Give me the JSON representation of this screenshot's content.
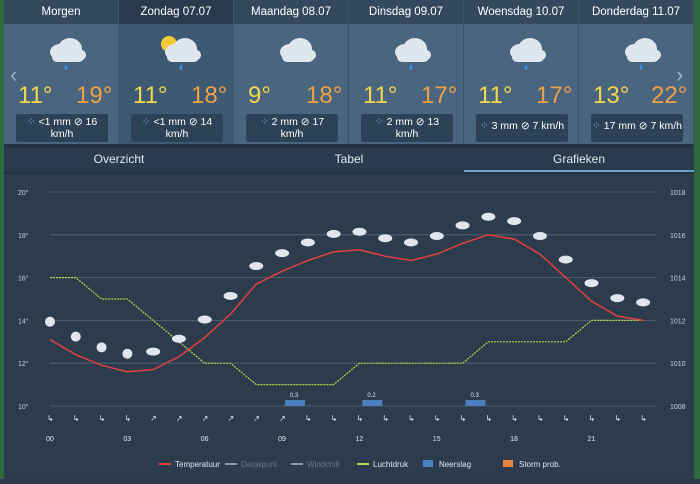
{
  "days": [
    {
      "name": "Morgen",
      "tmin": "11°",
      "tmax": "19°",
      "rain": "<1 mm",
      "wind": "16",
      "wind_unit": "km/h",
      "icon": "cloud-rain-icon",
      "active": false
    },
    {
      "name": "Zondag 07.07",
      "tmin": "11°",
      "tmax": "18°",
      "rain": "<1 mm",
      "wind": "14",
      "wind_unit": "km/h",
      "icon": "sun-cloud-rain-icon",
      "active": true
    },
    {
      "name": "Maandag 08.07",
      "tmin": "9°",
      "tmax": "18°",
      "rain": "2 mm",
      "wind": "17",
      "wind_unit": "km/h",
      "icon": "cloud-icon",
      "active": false
    },
    {
      "name": "Dinsdag 09.07",
      "tmin": "11°",
      "tmax": "17°",
      "rain": "2 mm",
      "wind": "13",
      "wind_unit": "km/h",
      "icon": "cloud-rain-icon",
      "active": false
    },
    {
      "name": "Woensdag 10.07",
      "tmin": "11°",
      "tmax": "17°",
      "rain": "3 mm",
      "wind": "7 km/h",
      "wind_unit": "",
      "icon": "cloud-rain-icon",
      "active": false
    },
    {
      "name": "Donderdag 11.07",
      "tmin": "13°",
      "tmax": "22°",
      "rain": "17 mm",
      "wind": "7 km/h",
      "wind_unit": "",
      "icon": "cloud-rain-icon",
      "active": false
    }
  ],
  "nav": {
    "prev": "‹",
    "next": "›"
  },
  "tabs": [
    {
      "label": "Overzicht",
      "active": false
    },
    {
      "label": "Tabel",
      "active": false
    },
    {
      "label": "Grafieken",
      "active": true
    }
  ],
  "colors": {
    "temperature": "#e04040",
    "pressure": "#b8d44a",
    "precip": "#4a7fc0",
    "storm": "#e8843a"
  },
  "chart_data": {
    "type": "line",
    "x_ticks": [
      "00",
      "03",
      "06",
      "09",
      "12",
      "15",
      "18",
      "21"
    ],
    "y_left_ticks": [
      "10°",
      "12°",
      "14°",
      "16°",
      "18°",
      "20°"
    ],
    "y_right_ticks": [
      "1008",
      "1010",
      "1012",
      "1014",
      "1016",
      "1018"
    ],
    "hours": [
      0,
      1,
      2,
      3,
      4,
      5,
      6,
      7,
      8,
      9,
      10,
      11,
      12,
      13,
      14,
      15,
      16,
      17,
      18,
      19,
      20,
      21,
      22,
      23
    ],
    "series": [
      {
        "name": "Temperatuur",
        "values": [
          13.1,
          12.4,
          11.9,
          11.6,
          11.7,
          12.3,
          13.2,
          14.3,
          15.7,
          16.3,
          16.8,
          17.2,
          17.3,
          17.0,
          16.8,
          17.1,
          17.6,
          18.0,
          17.8,
          17.1,
          16.0,
          14.9,
          14.2,
          14.0
        ]
      },
      {
        "name": "Luchtdruk",
        "values": [
          1014,
          1014,
          1013,
          1013,
          1012,
          1011,
          1010,
          1010,
          1009,
          1009,
          1009,
          1009,
          1010,
          1010,
          1010,
          1010,
          1010,
          1011,
          1011,
          1011,
          1011,
          1012,
          1012,
          1012
        ]
      }
    ],
    "precip_labels": [
      "0.3",
      "0.2",
      "0.3"
    ],
    "precip_hours": [
      9.5,
      12.5,
      16.5
    ],
    "ylim_left": [
      10,
      20
    ],
    "ylim_right": [
      1008,
      1018
    ],
    "legend": [
      {
        "label": "Temperatuur",
        "color": "#e04040"
      },
      {
        "label": "Dauwpunt",
        "color": "#8a9aa8"
      },
      {
        "label": "Windchill",
        "color": "#8a9aa8"
      },
      {
        "label": "Luchtdruk",
        "color": "#b8d44a"
      },
      {
        "label": "Neerslag",
        "color": "#4a7fc0"
      },
      {
        "label": "Storm prob.",
        "color": "#e8843a"
      }
    ]
  }
}
